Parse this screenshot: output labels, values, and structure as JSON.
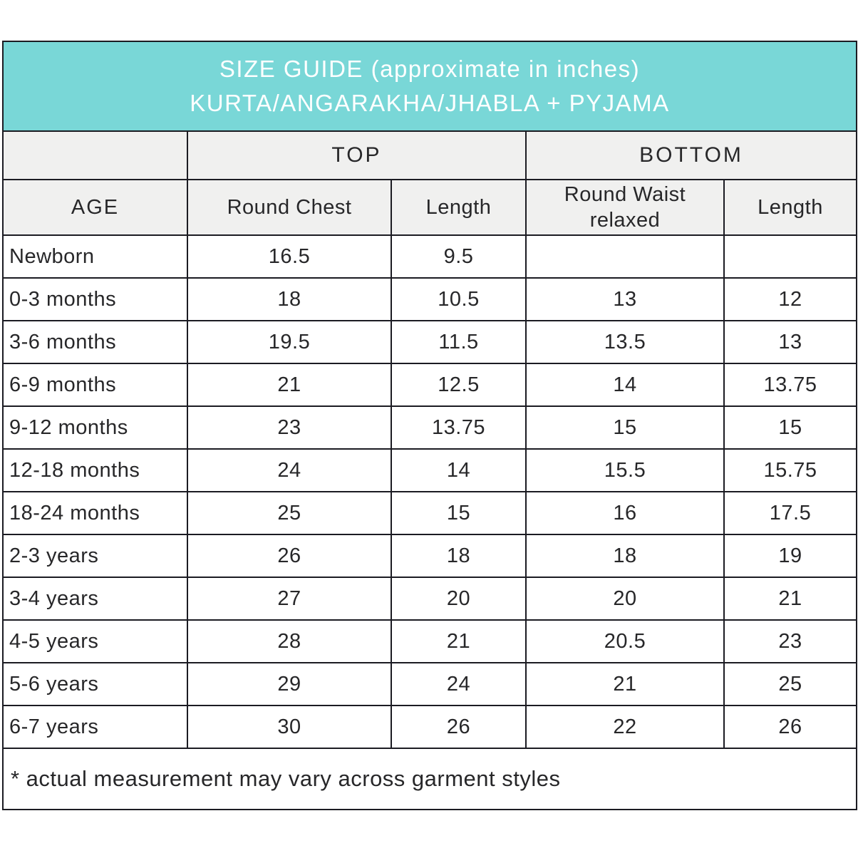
{
  "colors": {
    "header_bg": "#79d7d7",
    "header_text": "#ffffff",
    "subheader_bg": "#f0f0ef",
    "border": "#1b1b22",
    "text": "#272729",
    "row_bg": "#ffffff"
  },
  "chart_data": {
    "type": "table",
    "title": "SIZE GUIDE (approximate in inches)",
    "subtitle": "KURTA/ANGARAKHA/JHABLA + PYJAMA",
    "column_groups": [
      {
        "label": "",
        "span": 1
      },
      {
        "label": "TOP",
        "span": 2
      },
      {
        "label": "BOTTOM",
        "span": 2
      }
    ],
    "columns": [
      "AGE",
      "Round Chest",
      "Length",
      "Round Waist relaxed",
      "Length"
    ],
    "rows": [
      [
        "Newborn",
        "16.5",
        "9.5",
        "",
        ""
      ],
      [
        "0-3 months",
        "18",
        "10.5",
        "13",
        "12"
      ],
      [
        "3-6 months",
        "19.5",
        "11.5",
        "13.5",
        "13"
      ],
      [
        "6-9 months",
        "21",
        "12.5",
        "14",
        "13.75"
      ],
      [
        "9-12 months",
        "23",
        "13.75",
        "15",
        "15"
      ],
      [
        "12-18 months",
        "24",
        "14",
        "15.5",
        "15.75"
      ],
      [
        "18-24 months",
        "25",
        "15",
        "16",
        "17.5"
      ],
      [
        "2-3 years",
        "26",
        "18",
        "18",
        "19"
      ],
      [
        "3-4 years",
        "27",
        "20",
        "20",
        "21"
      ],
      [
        "4-5 years",
        "28",
        "21",
        "20.5",
        "23"
      ],
      [
        "5-6 years",
        "29",
        "24",
        "21",
        "25"
      ],
      [
        "6-7 years",
        "30",
        "26",
        "22",
        "26"
      ]
    ],
    "footnote": "* actual measurement may vary across garment styles"
  }
}
